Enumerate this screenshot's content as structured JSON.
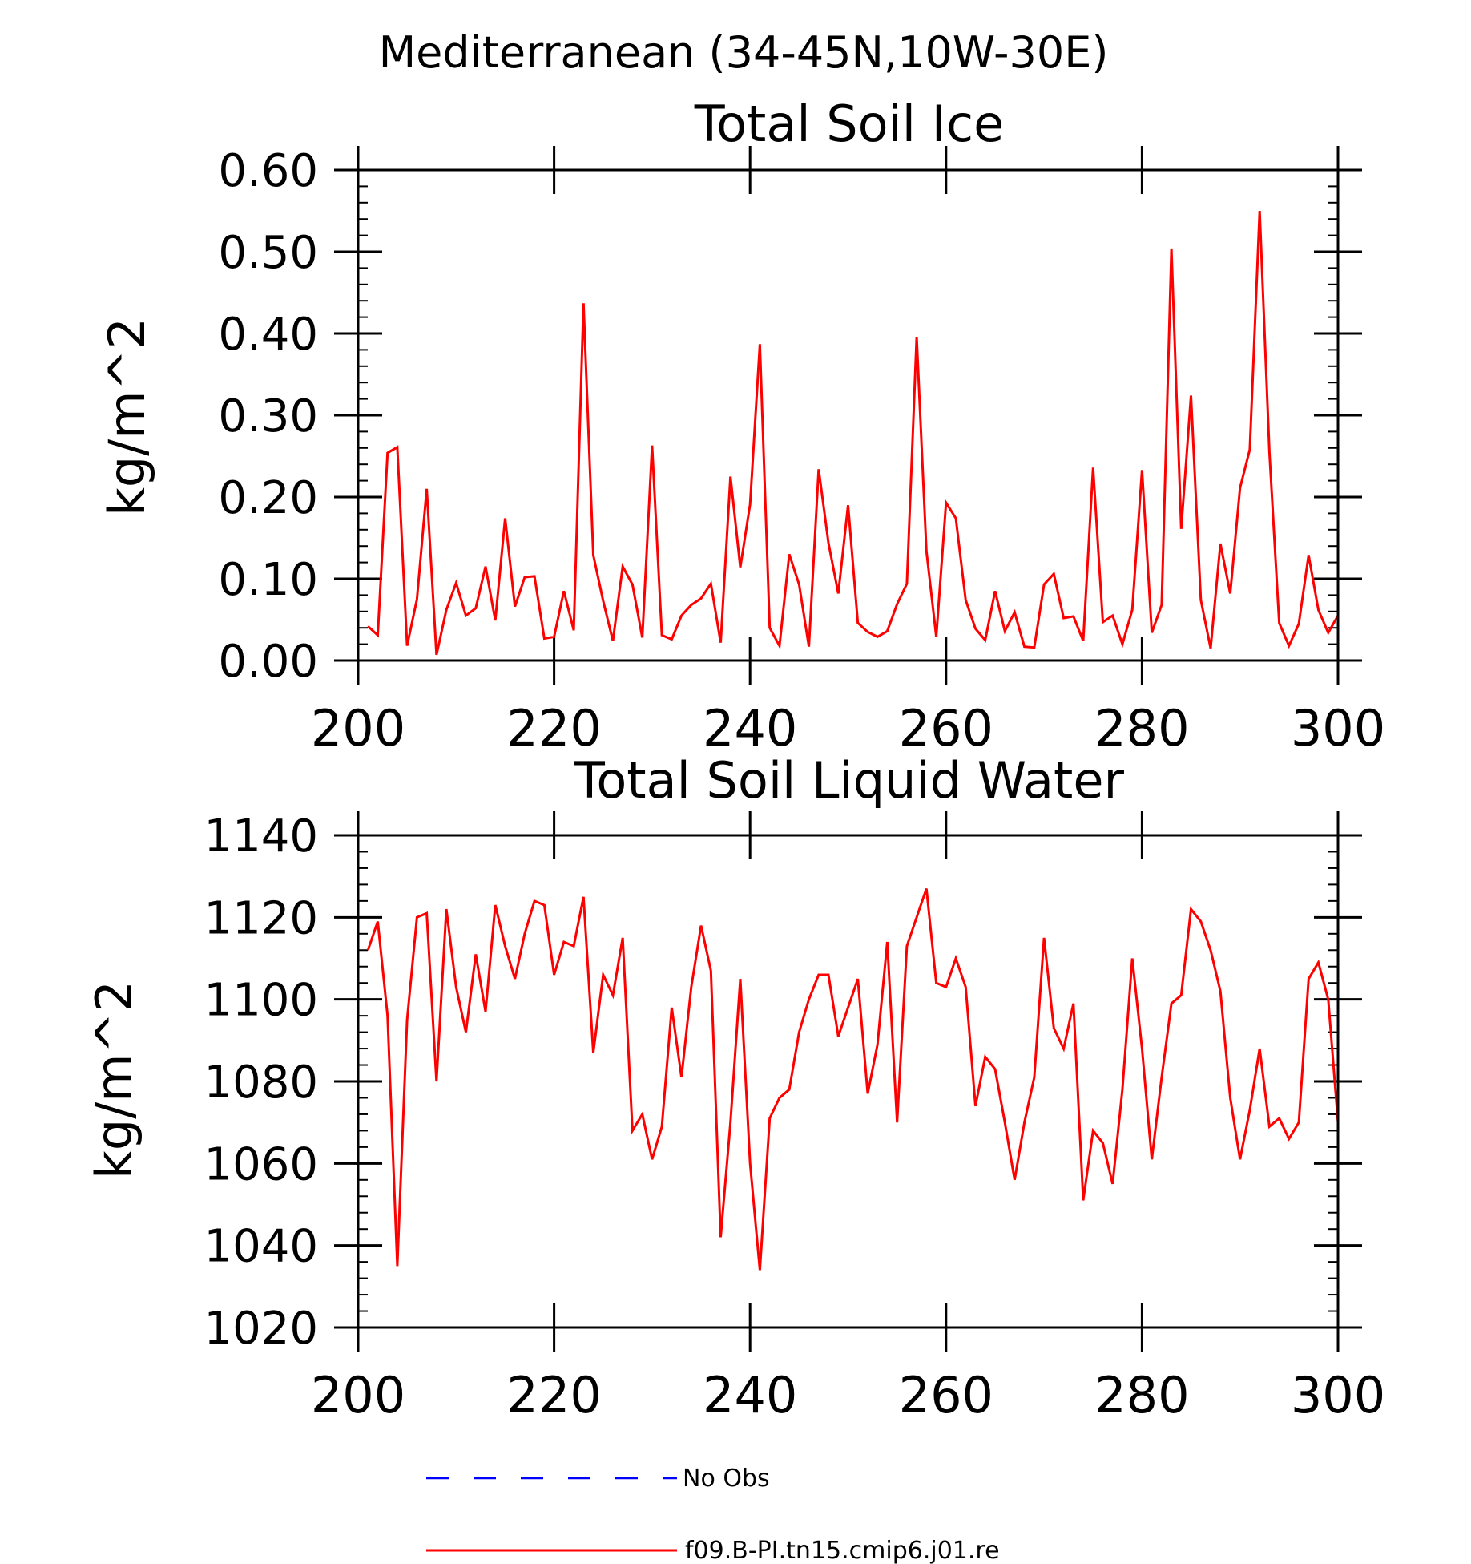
{
  "figure": {
    "title": "Mediterranean (34-45N,10W-30E)"
  },
  "chart_data": [
    {
      "type": "line",
      "title": "Total Soil Ice",
      "ylabel": "kg/m^2",
      "xlabel": "",
      "xlim": [
        200,
        300
      ],
      "ylim": [
        0,
        0.6
      ],
      "x_ticks": [
        "200",
        "220",
        "240",
        "260",
        "280",
        "300"
      ],
      "y_ticks": [
        "0.00",
        "0.10",
        "0.20",
        "0.30",
        "0.40",
        "0.50",
        "0.60"
      ],
      "y_tick_values": [
        0,
        0.1,
        0.2,
        0.3,
        0.4,
        0.5,
        0.6
      ],
      "grid": false,
      "x_start": 201,
      "series": [
        {
          "name": "f09.B-PI.tn15.cmip6.j01.re",
          "color": "#ff0000",
          "values": [
            0.042,
            0.031,
            0.254,
            0.261,
            0.018,
            0.075,
            0.21,
            0.007,
            0.062,
            0.095,
            0.055,
            0.064,
            0.115,
            0.049,
            0.174,
            0.066,
            0.102,
            0.103,
            0.027,
            0.029,
            0.085,
            0.037,
            0.437,
            0.129,
            0.073,
            0.024,
            0.115,
            0.093,
            0.028,
            0.263,
            0.031,
            0.026,
            0.055,
            0.068,
            0.076,
            0.094,
            0.022,
            0.225,
            0.114,
            0.191,
            0.387,
            0.04,
            0.018,
            0.13,
            0.093,
            0.017,
            0.234,
            0.144,
            0.082,
            0.19,
            0.046,
            0.035,
            0.029,
            0.036,
            0.069,
            0.094,
            0.396,
            0.134,
            0.029,
            0.193,
            0.174,
            0.074,
            0.039,
            0.025,
            0.085,
            0.036,
            0.059,
            0.017,
            0.016,
            0.093,
            0.106,
            0.052,
            0.054,
            0.024,
            0.236,
            0.047,
            0.055,
            0.02,
            0.062,
            0.233,
            0.034,
            0.068,
            0.504,
            0.161,
            0.324,
            0.074,
            0.015,
            0.143,
            0.082,
            0.211,
            0.258,
            0.55,
            0.255,
            0.046,
            0.018,
            0.045,
            0.129,
            0.062,
            0.034,
            0.055
          ]
        }
      ]
    },
    {
      "type": "line",
      "title": "Total Soil Liquid Water",
      "ylabel": "kg/m^2",
      "xlabel": "",
      "xlim": [
        200,
        300
      ],
      "ylim": [
        1020,
        1140
      ],
      "x_ticks": [
        "200",
        "220",
        "240",
        "260",
        "280",
        "300"
      ],
      "y_ticks": [
        "1020",
        "1040",
        "1060",
        "1080",
        "1100",
        "1120",
        "1140"
      ],
      "y_tick_values": [
        1020,
        1040,
        1060,
        1080,
        1100,
        1120,
        1140
      ],
      "grid": false,
      "x_start": 201,
      "series": [
        {
          "name": "f09.B-PI.tn15.cmip6.j01.re",
          "color": "#ff0000",
          "values": [
            1112,
            1119,
            1096,
            1035,
            1095,
            1120,
            1121,
            1080,
            1122,
            1103,
            1092,
            1111,
            1097,
            1123,
            1113,
            1105,
            1116,
            1124,
            1123,
            1106,
            1114,
            1113,
            1125,
            1087,
            1106,
            1101,
            1115,
            1068,
            1072,
            1061,
            1069,
            1098,
            1081,
            1103,
            1118,
            1107,
            1042,
            1070,
            1105,
            1060,
            1034,
            1071,
            1076,
            1078,
            1092,
            1100,
            1106,
            1106,
            1091,
            1098,
            1105,
            1077,
            1089,
            1114,
            1070,
            1113,
            1120,
            1127,
            1104,
            1103,
            1110,
            1103,
            1074,
            1086,
            1083,
            1070,
            1056,
            1070,
            1081,
            1115,
            1093,
            1088,
            1099,
            1051,
            1068,
            1065,
            1055,
            1078,
            1110,
            1088,
            1061,
            1081,
            1099,
            1101,
            1122,
            1119,
            1112,
            1102,
            1076,
            1061,
            1073,
            1088,
            1069,
            1071,
            1066,
            1070,
            1105,
            1109,
            1100,
            1070
          ]
        }
      ]
    }
  ],
  "legend": {
    "items": [
      {
        "label": "No Obs",
        "color": "#0000ff",
        "dash": true
      },
      {
        "label": "f09.B-PI.tn15.cmip6.j01.re",
        "color": "#ff0000",
        "dash": false
      }
    ]
  }
}
